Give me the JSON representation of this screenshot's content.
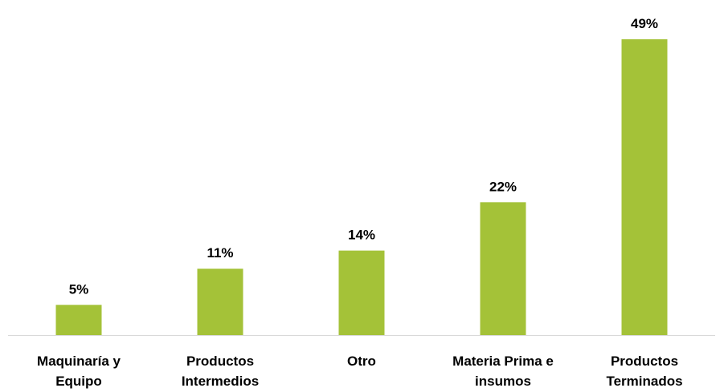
{
  "chart_data": {
    "type": "bar",
    "title": "",
    "xlabel": "",
    "ylabel": "",
    "categories": [
      [
        "Maquinaría y",
        "Equipo"
      ],
      [
        "Productos",
        "Intermedios"
      ],
      [
        "Otro"
      ],
      [
        "Materia Prima e",
        "insumos"
      ],
      [
        "Productos",
        "Terminados"
      ]
    ],
    "values": [
      5,
      11,
      14,
      22,
      49
    ],
    "data_labels": [
      "5%",
      "11%",
      "14%",
      "22%",
      "49%"
    ],
    "unit": "%",
    "ylim": [
      0,
      49
    ],
    "grid": false,
    "legend": "none",
    "bar_color": "#a4c238",
    "axis_color": "#d9d9d9"
  }
}
